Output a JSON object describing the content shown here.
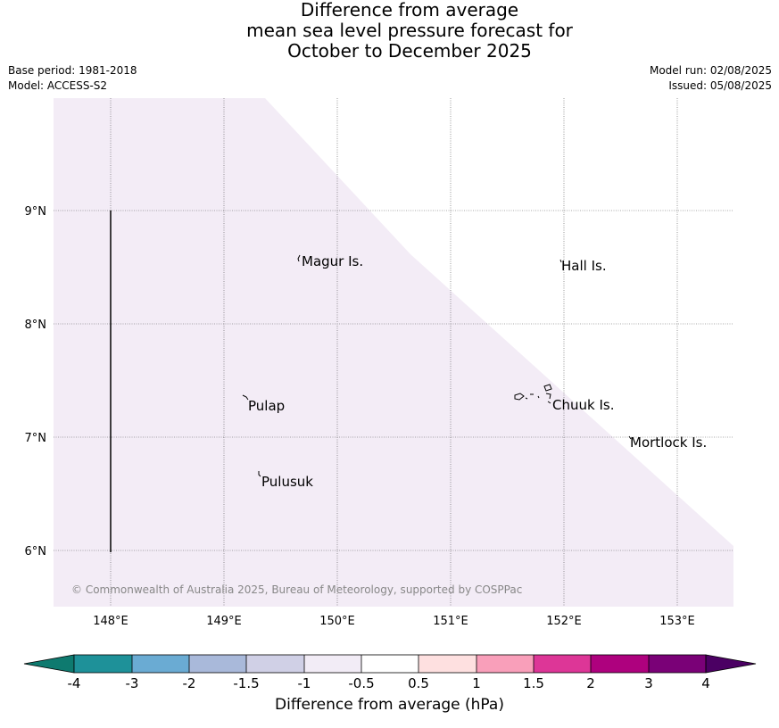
{
  "title": {
    "line1": "Difference from average",
    "line2": "mean sea level pressure forecast for",
    "line3": "October to December 2025"
  },
  "meta": {
    "base_period": "Base period: 1981-2018",
    "model": "Model: ACCESS-S2",
    "model_run": "Model run: 02/08/2025",
    "issued": "Issued: 05/08/2025"
  },
  "map": {
    "fill_color": "#f3ecf6",
    "lon_ticks": [
      "148°E",
      "149°E",
      "150°E",
      "151°E",
      "152°E",
      "153°E"
    ],
    "lat_ticks": [
      "9°N",
      "8°N",
      "7°N",
      "6°N"
    ],
    "places": [
      "Magur Is.",
      "Hall Is.",
      "Pulap",
      "Chuuk Is.",
      "Mortlock Is.",
      "Pulusuk"
    ],
    "copyright": "© Commonwealth of Australia 2025, Bureau of Meteorology, supported by COSPPac"
  },
  "colorbar": {
    "label": "Difference from average (hPa)",
    "ticks": [
      "-4",
      "-3",
      "-2",
      "-1.5",
      "-1",
      "-0.5",
      "0.5",
      "1",
      "1.5",
      "2",
      "3",
      "4"
    ],
    "colors": [
      "#0e7a6f",
      "#1e9199",
      "#6aabd3",
      "#a9b9da",
      "#d0d0e6",
      "#f2ecf6",
      "#ffffff",
      "#fee0e0",
      "#f99fba",
      "#dd3697",
      "#ae017e",
      "#7a0177",
      "#4b0063"
    ]
  }
}
